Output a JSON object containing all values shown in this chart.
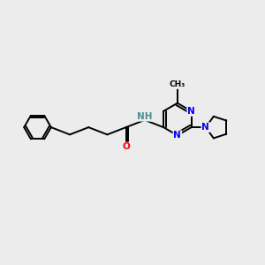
{
  "background_color": "#ececec",
  "bond_color": "#000000",
  "atom_colors": {
    "N": "#0000ff",
    "O": "#ff0000",
    "H_on_N": "#4a9090",
    "C": "#000000"
  },
  "bond_lw": 1.4,
  "font_size": 7.0
}
